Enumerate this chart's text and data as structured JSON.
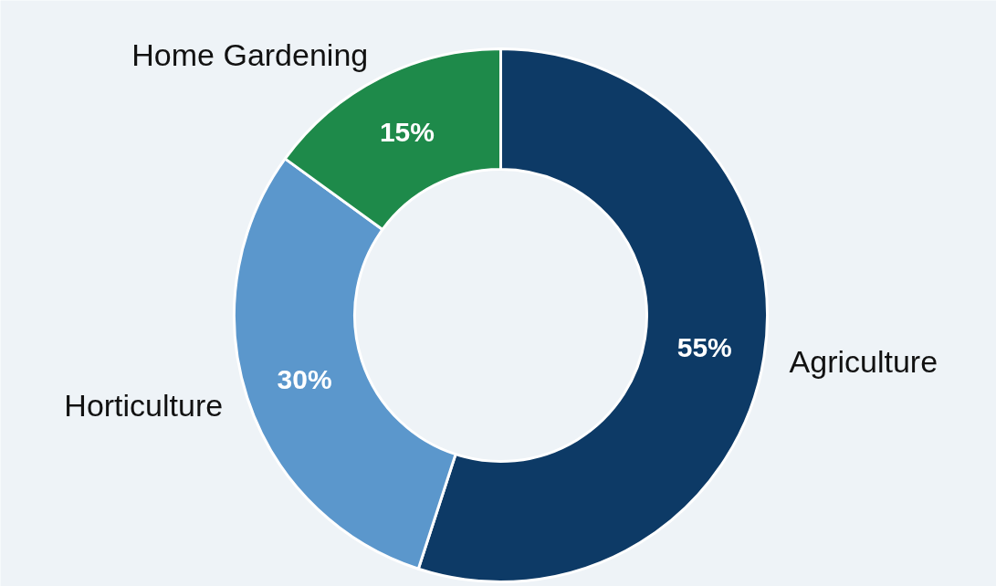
{
  "chart_data": {
    "type": "donut",
    "categories": [
      "Agriculture",
      "Horticulture",
      "Home Gardening"
    ],
    "values": [
      55,
      30,
      15
    ],
    "value_labels": [
      "55%",
      "30%",
      "15%"
    ],
    "colors": [
      "#0d3a66",
      "#5b97cc",
      "#1e8a4a"
    ]
  }
}
